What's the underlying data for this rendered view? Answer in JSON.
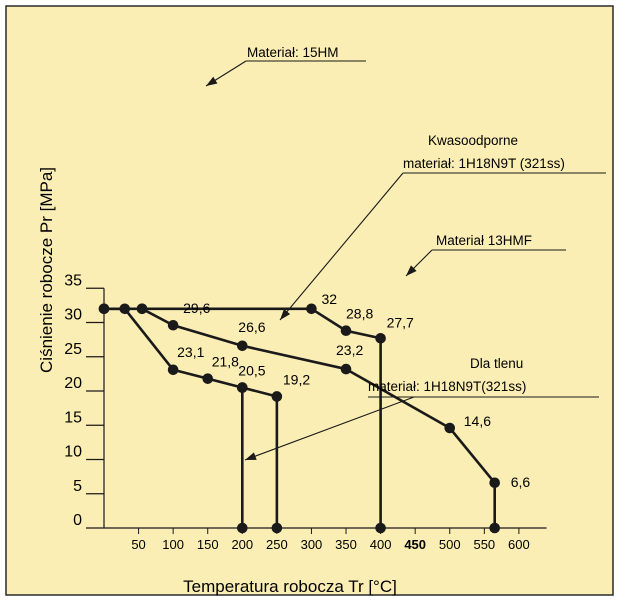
{
  "chart_data": {
    "type": "line",
    "xlabel": "Temperatura robocza Tr [°C]",
    "ylabel": "Ciśnienie robocze Pr [MPa]",
    "xlim": [
      0,
      640
    ],
    "ylim": [
      0,
      35
    ],
    "x_ticks": [
      "50",
      "100",
      "150",
      "200",
      "250",
      "300",
      "350",
      "400",
      "450",
      "500",
      "550",
      "600"
    ],
    "x_tick_values": [
      50,
      100,
      150,
      200,
      250,
      300,
      350,
      400,
      450,
      500,
      550,
      600
    ],
    "y_ticks": [
      "0",
      "5",
      "10",
      "15",
      "20",
      "25",
      "30",
      "35"
    ],
    "y_tick_values": [
      0,
      5,
      10,
      15,
      20,
      25,
      30,
      35
    ],
    "background": "#fbeeb4",
    "border_color": "#2a2a2a",
    "line_color": "#1a1a1a",
    "series": [
      {
        "name": "Materiał: 15HM",
        "points": [
          {
            "x": 0,
            "y": 32
          },
          {
            "x": 55,
            "y": 32
          },
          {
            "x": 300,
            "y": 32
          },
          {
            "x": 350,
            "y": 28.8
          },
          {
            "x": 400,
            "y": 27.7
          },
          {
            "x": 400,
            "y": 0
          }
        ],
        "labels": [
          "",
          "",
          "32",
          "28,8",
          "27,7",
          ""
        ]
      },
      {
        "name": "Materiał 13HMF",
        "points": [
          {
            "x": 55,
            "y": 32
          },
          {
            "x": 100,
            "y": 29.6
          },
          {
            "x": 200,
            "y": 26.6
          },
          {
            "x": 350,
            "y": 23.2
          },
          {
            "x": 500,
            "y": 14.6
          },
          {
            "x": 565,
            "y": 6.6
          },
          {
            "x": 565,
            "y": 0
          }
        ],
        "labels": [
          "",
          "29,6",
          "26,6",
          "23,2",
          "14,6",
          "6,6",
          ""
        ]
      },
      {
        "name": "Kwasoodporne materiał: 1H18N9T (321ss)",
        "points": [
          {
            "x": 0,
            "y": 32
          },
          {
            "x": 30,
            "y": 32
          },
          {
            "x": 100,
            "y": 23.1
          },
          {
            "x": 150,
            "y": 21.8
          },
          {
            "x": 200,
            "y": 20.5
          },
          {
            "x": 250,
            "y": 19.2
          },
          {
            "x": 250,
            "y": 0
          }
        ],
        "labels": [
          "",
          "",
          "23,1",
          "21,8",
          "20,5",
          "19,2",
          ""
        ]
      },
      {
        "name": "Dla tlenu materiał: 1H18N9T(321ss)",
        "points": [
          {
            "x": 200,
            "y": 20.5
          },
          {
            "x": 200,
            "y": 0
          }
        ],
        "labels": [
          "",
          ""
        ]
      }
    ],
    "annotations": [
      {
        "id": "15hm",
        "text": "Materiał: 15HM"
      },
      {
        "id": "kwas",
        "text": "Kwasoodporne",
        "text2": "materiał: 1H18N9T (321ss)"
      },
      {
        "id": "13hmf",
        "text": "Materiał 13HMF"
      },
      {
        "id": "tlen",
        "text": "Dla tlenu",
        "text2": "materiał: 1H18N9T(321ss)"
      }
    ]
  }
}
